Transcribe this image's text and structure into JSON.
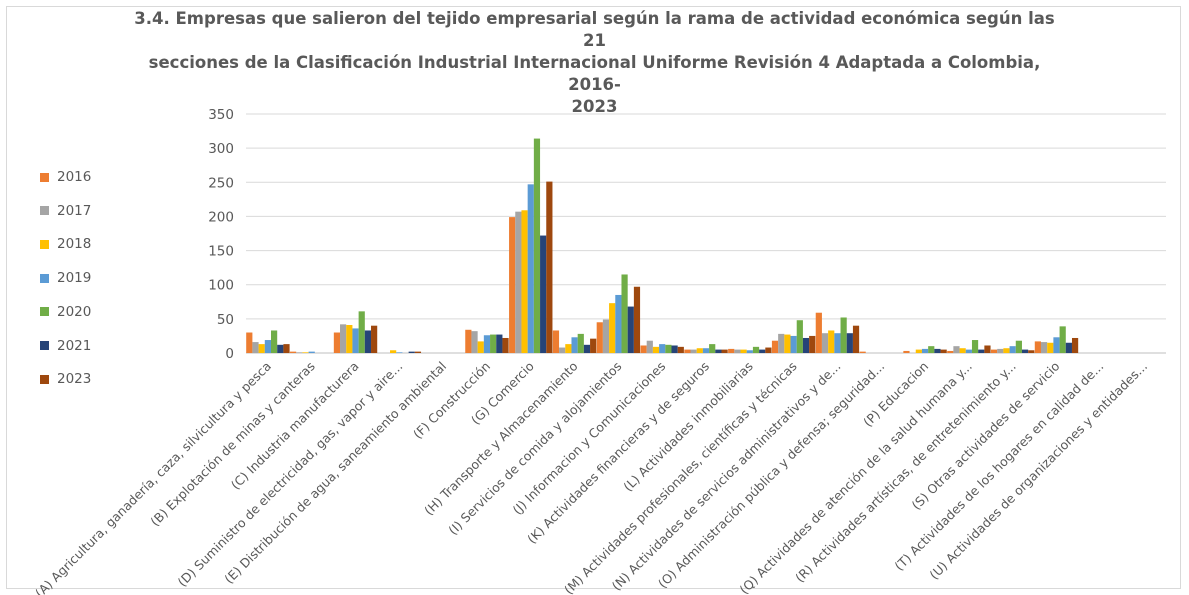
{
  "title_lines": [
    "3.4. Empresas que salieron del tejido empresarial según la rama de actividad económica según las 21",
    "secciones de la Clasificación Industrial Internacional Uniforme Revisión 4 Adaptada a Colombia, 2016-",
    "2023"
  ],
  "chart_data": {
    "type": "bar",
    "title": "3.4. Empresas que salieron del tejido empresarial según la rama de actividad económica según las 21 secciones de la Clasificación Industrial Internacional Uniforme Revisión 4 Adaptada a Colombia, 2016-2023",
    "xlabel": "",
    "ylabel": "",
    "ylim": [
      0,
      350
    ],
    "yticks": [
      0,
      50,
      100,
      150,
      200,
      250,
      300,
      350
    ],
    "grid": true,
    "legend_position": "left",
    "categories": [
      "(A) Agricultura, ganadería, caza, silvicultura y pesca",
      "(B) Explotación de minas y canteras",
      "(C) Industria manufacturera",
      "(D) Suministro de electricidad, gas, vapor y aire...",
      "(E) Distribución de agua, saneamiento ambiental",
      "(F) Construcción",
      "(G) Comercio",
      "(H) Transporte y Almacenamiento",
      "(I) Servicios de comida y alojamientos",
      "(J) Informacion y Comunicaciones",
      "(K) Actividades financieras y de seguros",
      "(L) Actividades inmobiliarias",
      "(M) Actividades profesionales, científicas y técnicas",
      "(N) Actividades de servicios administrativos y de...",
      "(O) Administración pública y defensa; seguridad...",
      "(P) Educacion",
      "(Q) Actividades de atención de la salud humana y...",
      "(R) Actividades artísticas, de entretenimiento y...",
      "(S) Otras actividades de servicio",
      "(T) Actividades de los hogares en calidad de...",
      "(U) Actividades de organizaciones y entidades..."
    ],
    "series": [
      {
        "name": "2016",
        "color": "#ED7D31",
        "values": [
          30,
          2,
          30,
          0,
          0,
          34,
          199,
          33,
          45,
          11,
          5,
          6,
          18,
          59,
          2,
          3,
          3,
          5,
          17,
          0,
          0
        ]
      },
      {
        "name": "2017",
        "color": "#A5A5A5",
        "values": [
          16,
          1,
          42,
          0,
          0,
          32,
          207,
          8,
          49,
          18,
          5,
          5,
          28,
          29,
          0,
          0,
          10,
          6,
          16,
          0,
          0
        ]
      },
      {
        "name": "2018",
        "color": "#FFC000",
        "values": [
          13,
          1,
          41,
          4,
          0,
          17,
          209,
          13,
          73,
          9,
          7,
          5,
          27,
          33,
          0,
          5,
          7,
          7,
          15,
          0,
          0
        ]
      },
      {
        "name": "2019",
        "color": "#5B9BD5",
        "values": [
          19,
          2,
          36,
          1,
          0,
          26,
          247,
          23,
          85,
          13,
          7,
          4,
          25,
          29,
          0,
          6,
          5,
          10,
          23,
          0,
          0
        ]
      },
      {
        "name": "2020",
        "color": "#70AD47",
        "values": [
          33,
          0,
          61,
          0,
          0,
          27,
          314,
          28,
          115,
          12,
          13,
          9,
          48,
          52,
          0,
          10,
          19,
          18,
          39,
          0,
          0
        ]
      },
      {
        "name": "2021",
        "color": "#264478",
        "values": [
          12,
          0,
          33,
          2,
          0,
          27,
          172,
          12,
          68,
          11,
          5,
          5,
          22,
          29,
          0,
          6,
          5,
          5,
          15,
          0,
          0
        ]
      },
      {
        "name": "2023",
        "color": "#9E480E",
        "values": [
          13,
          0,
          40,
          2,
          0,
          22,
          251,
          21,
          97,
          9,
          5,
          8,
          25,
          40,
          0,
          5,
          11,
          4,
          22,
          0,
          0
        ]
      }
    ]
  }
}
